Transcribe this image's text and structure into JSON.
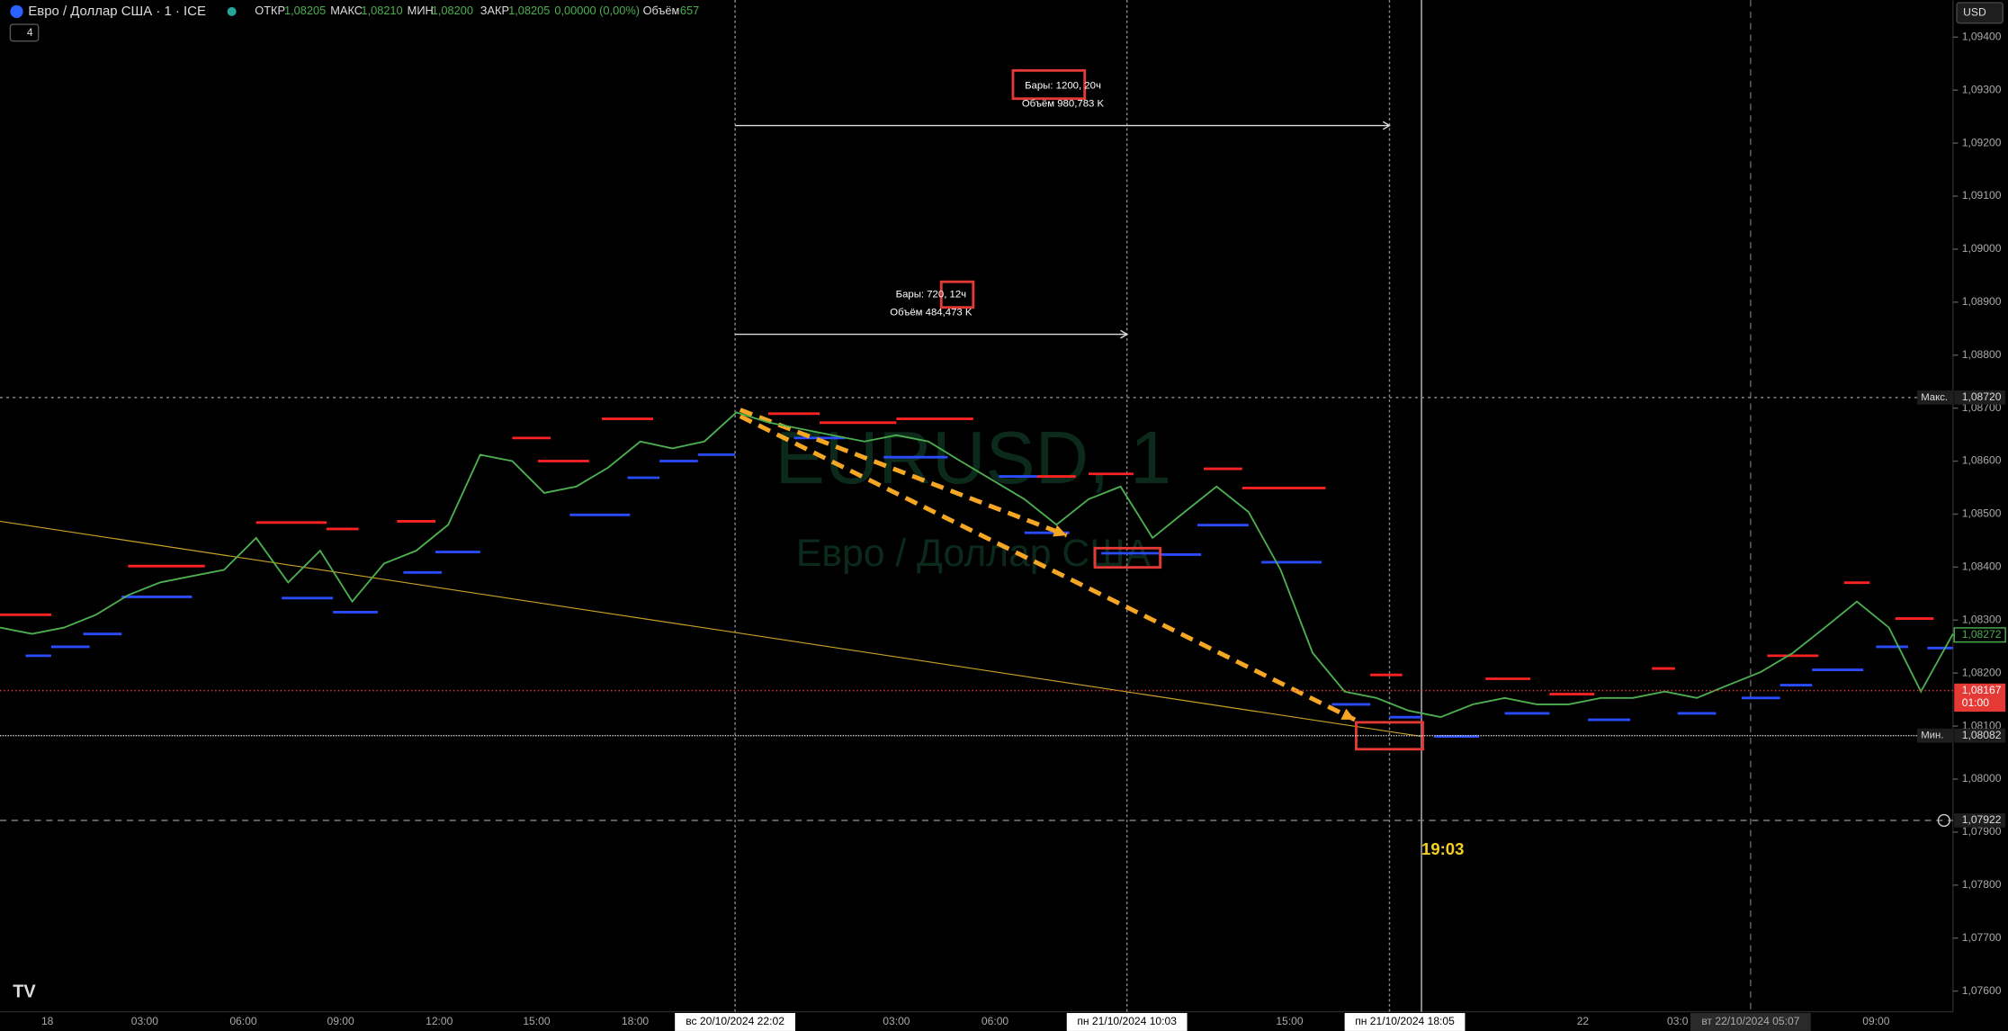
{
  "header": {
    "symbol": "Евро / Доллар США · 1 · ICE",
    "open_label": "ОТКР",
    "open": "1,08205",
    "high_label": "МАКС",
    "high": "1,08210",
    "low_label": "МИН",
    "low": "1,08200",
    "close_label": "ЗАКР",
    "close": "1,08205",
    "change": "0,00000 (0,00%)",
    "volume_label": "Объём",
    "volume": "657",
    "indicators": "4",
    "currency": "USD"
  },
  "watermark": {
    "ticker": "EURUSD, 1",
    "name": "Евро / Доллар США"
  },
  "measures": [
    {
      "bars": "Бары: 1200, 20ч",
      "volume": "Объём 980,783 K"
    },
    {
      "bars": "Бары: 720, 12ч",
      "volume": "Объём 484,473 K"
    }
  ],
  "annotation": "19:03",
  "time_axis": [
    "18",
    "03:00",
    "06:00",
    "09:00",
    "12:00",
    "15:00",
    "18:00",
    "вс 20/10/2024  22:02",
    "03:00",
    "06:00",
    "пн 21/10/2024  10:03",
    "15:00",
    "пн 21/10/2024  18:05",
    "22",
    "03:0",
    "вт 22/10/2024  05:07",
    "09:00"
  ],
  "chart_data": {
    "type": "line",
    "color": "#4caf50",
    "values": [
      1.08286,
      1.08274,
      1.08286,
      1.0831,
      1.08347,
      1.08371,
      1.08383,
      1.08395,
      1.08455,
      1.08371,
      1.08431,
      1.08335,
      1.08407,
      1.08431,
      1.0848,
      1.08612,
      1.086,
      1.0854,
      1.08552,
      1.08588,
      1.08637,
      1.08624,
      1.08637,
      1.08692,
      1.08673,
      1.08661,
      1.08649,
      1.08637,
      1.08649,
      1.08637,
      1.086,
      1.08564,
      1.08528,
      1.0848,
      1.08528,
      1.08552,
      1.08455,
      1.08504,
      1.08552,
      1.08504,
      1.08395,
      1.08238,
      1.08165,
      1.08153,
      1.08129,
      1.08117,
      1.08141,
      1.08153,
      1.08141,
      1.08141,
      1.08153,
      1.08153,
      1.08165,
      1.08153,
      1.08178,
      1.08202,
      1.08238,
      1.08286,
      1.08335,
      1.08286,
      1.08165,
      1.08274
    ],
    "ylim": [
      1.07561,
      1.0947
    ],
    "yticks": [
      {
        "value": 1.094,
        "label": "1,09400"
      },
      {
        "value": 1.093,
        "label": "1,09300"
      },
      {
        "value": 1.092,
        "label": "1,09200"
      },
      {
        "value": 1.091,
        "label": "1,09100"
      },
      {
        "value": 1.09,
        "label": "1,09000"
      },
      {
        "value": 1.089,
        "label": "1,08900"
      },
      {
        "value": 1.088,
        "label": "1,08800"
      },
      {
        "value": 1.087,
        "label": "1,08700"
      },
      {
        "value": 1.086,
        "label": "1,08600"
      },
      {
        "value": 1.085,
        "label": "1,08500"
      },
      {
        "value": 1.084,
        "label": "1,08400"
      },
      {
        "value": 1.083,
        "label": "1,08300"
      },
      {
        "value": 1.082,
        "label": "1,08200"
      },
      {
        "value": 1.081,
        "label": "1,08100"
      },
      {
        "value": 1.08,
        "label": "1,08000"
      },
      {
        "value": 1.079,
        "label": "1,07900"
      },
      {
        "value": 1.078,
        "label": "1,07800"
      },
      {
        "value": 1.077,
        "label": "1,07700"
      },
      {
        "value": 1.076,
        "label": "1,07600"
      }
    ],
    "price_markers": [
      {
        "value": 1.0872,
        "label": "1,08720",
        "tag": "Макс."
      },
      {
        "value": 1.08272,
        "label": "1,08272"
      },
      {
        "value": 1.08167,
        "label": "1,08167",
        "sub": "01:00"
      },
      {
        "value": 1.08082,
        "label": "1,08082",
        "tag": "Мин."
      },
      {
        "value": 1.07922,
        "label": "1,07922"
      }
    ]
  }
}
